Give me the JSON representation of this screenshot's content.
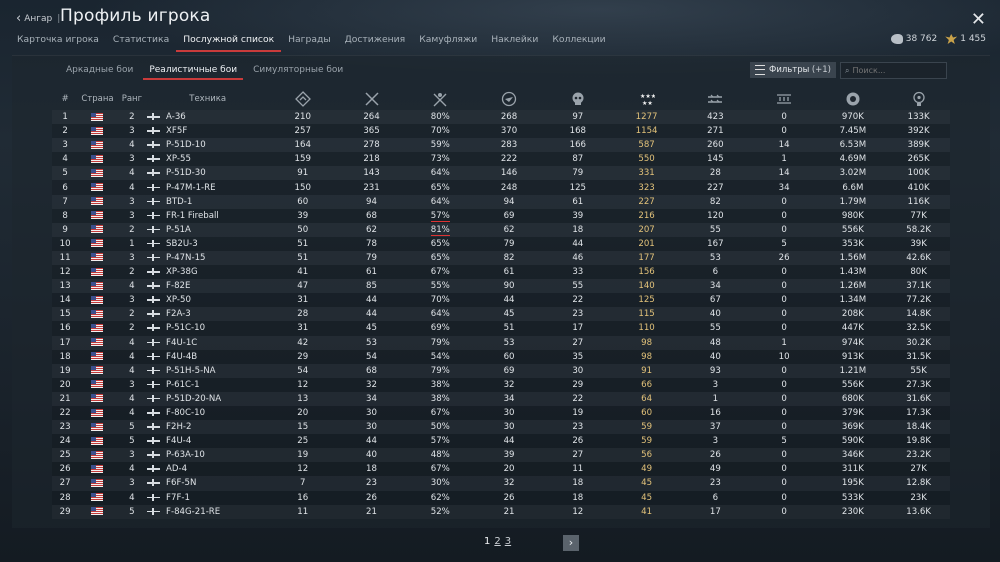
{
  "header": {
    "back_label": "Ангар",
    "separator": "|",
    "title": "Профиль игрока",
    "tabs": [
      "Карточка игрока",
      "Статистика",
      "Послужной список",
      "Награды",
      "Достижения",
      "Камуфляжи",
      "Наклейки",
      "Коллекции"
    ],
    "active_tab": 2,
    "silver_lions": "38 762",
    "golden_eagles": "1 455"
  },
  "modes": {
    "tabs": [
      "Аркадные бои",
      "Реалистичные бои",
      "Симуляторные бои"
    ],
    "active": 1,
    "filters_label": "Фильтры",
    "filters_count": "(+1)",
    "search_placeholder": "Поиск..."
  },
  "table": {
    "headers": {
      "num": "#",
      "country": "Страна",
      "rank": "Ранг",
      "vehicle": "Техника"
    },
    "stat_icons": [
      "battles-icon",
      "victories-icon",
      "win-rate-icon",
      "missions-icon",
      "deaths-icon",
      "activity-icon",
      "air-kills-icon",
      "ground-kills-icon",
      "silver-icon",
      "research-icon"
    ],
    "rows": [
      {
        "n": "1",
        "rank": "2",
        "veh": "A-36",
        "s": [
          "210",
          "264",
          "80%",
          "268",
          "97",
          "1277",
          "423",
          "0",
          "970K",
          "133K"
        ]
      },
      {
        "n": "2",
        "rank": "3",
        "veh": "XF5F",
        "s": [
          "257",
          "365",
          "70%",
          "370",
          "168",
          "1154",
          "271",
          "0",
          "7.45M",
          "392K"
        ]
      },
      {
        "n": "3",
        "rank": "4",
        "veh": "P-51D-10",
        "s": [
          "164",
          "278",
          "59%",
          "283",
          "166",
          "587",
          "260",
          "14",
          "6.53M",
          "389K"
        ]
      },
      {
        "n": "4",
        "rank": "3",
        "veh": "XP-55",
        "s": [
          "159",
          "218",
          "73%",
          "222",
          "87",
          "550",
          "145",
          "1",
          "4.69M",
          "265K"
        ]
      },
      {
        "n": "5",
        "rank": "4",
        "veh": "P-51D-30",
        "s": [
          "91",
          "143",
          "64%",
          "146",
          "79",
          "331",
          "28",
          "14",
          "3.02M",
          "100K"
        ]
      },
      {
        "n": "6",
        "rank": "4",
        "veh": "P-47M-1-RE",
        "s": [
          "150",
          "231",
          "65%",
          "248",
          "125",
          "323",
          "227",
          "34",
          "6.6M",
          "410K"
        ]
      },
      {
        "n": "7",
        "rank": "3",
        "veh": "BTD-1",
        "s": [
          "60",
          "94",
          "64%",
          "94",
          "61",
          "227",
          "82",
          "0",
          "1.79M",
          "116K"
        ]
      },
      {
        "n": "8",
        "rank": "3",
        "veh": "FR-1 Fireball",
        "s": [
          "39",
          "68",
          "57%",
          "69",
          "39",
          "216",
          "120",
          "0",
          "980K",
          "77K"
        ]
      },
      {
        "n": "9",
        "rank": "2",
        "veh": "P-51A",
        "s": [
          "50",
          "62",
          "81%",
          "62",
          "18",
          "207",
          "55",
          "0",
          "556K",
          "58.2K"
        ]
      },
      {
        "n": "10",
        "rank": "1",
        "veh": "SB2U-3",
        "s": [
          "51",
          "78",
          "65%",
          "79",
          "44",
          "201",
          "167",
          "5",
          "353K",
          "39K"
        ]
      },
      {
        "n": "11",
        "rank": "3",
        "veh": "P-47N-15",
        "s": [
          "51",
          "79",
          "65%",
          "82",
          "46",
          "177",
          "53",
          "26",
          "1.56M",
          "42.6K"
        ]
      },
      {
        "n": "12",
        "rank": "2",
        "veh": "XP-38G",
        "s": [
          "41",
          "61",
          "67%",
          "61",
          "33",
          "156",
          "6",
          "0",
          "1.43M",
          "80K"
        ]
      },
      {
        "n": "13",
        "rank": "4",
        "veh": "F-82E",
        "s": [
          "47",
          "85",
          "55%",
          "90",
          "55",
          "140",
          "34",
          "0",
          "1.26M",
          "37.1K"
        ]
      },
      {
        "n": "14",
        "rank": "3",
        "veh": "XP-50",
        "s": [
          "31",
          "44",
          "70%",
          "44",
          "22",
          "125",
          "67",
          "0",
          "1.34M",
          "77.2K"
        ]
      },
      {
        "n": "15",
        "rank": "2",
        "veh": "F2A-3",
        "s": [
          "28",
          "44",
          "64%",
          "45",
          "23",
          "115",
          "40",
          "0",
          "208K",
          "14.8K"
        ]
      },
      {
        "n": "16",
        "rank": "2",
        "veh": "P-51C-10",
        "s": [
          "31",
          "45",
          "69%",
          "51",
          "17",
          "110",
          "55",
          "0",
          "447K",
          "32.5K"
        ]
      },
      {
        "n": "17",
        "rank": "4",
        "veh": "F4U-1C",
        "s": [
          "42",
          "53",
          "79%",
          "53",
          "27",
          "98",
          "48",
          "1",
          "974K",
          "30.2K"
        ]
      },
      {
        "n": "18",
        "rank": "4",
        "veh": "F4U-4B",
        "s": [
          "29",
          "54",
          "54%",
          "60",
          "35",
          "98",
          "40",
          "10",
          "913K",
          "31.5K"
        ]
      },
      {
        "n": "19",
        "rank": "4",
        "veh": "P-51H-5-NA",
        "s": [
          "54",
          "68",
          "79%",
          "69",
          "30",
          "91",
          "93",
          "0",
          "1.21M",
          "55K"
        ]
      },
      {
        "n": "20",
        "rank": "3",
        "veh": "P-61C-1",
        "s": [
          "12",
          "32",
          "38%",
          "32",
          "29",
          "66",
          "3",
          "0",
          "556K",
          "27.3K"
        ]
      },
      {
        "n": "21",
        "rank": "4",
        "veh": "P-51D-20-NA",
        "s": [
          "13",
          "34",
          "38%",
          "34",
          "22",
          "64",
          "1",
          "0",
          "680K",
          "31.6K"
        ]
      },
      {
        "n": "22",
        "rank": "4",
        "veh": "F-80C-10",
        "s": [
          "20",
          "30",
          "67%",
          "30",
          "19",
          "60",
          "16",
          "0",
          "379K",
          "17.3K"
        ]
      },
      {
        "n": "23",
        "rank": "5",
        "veh": "F2H-2",
        "s": [
          "15",
          "30",
          "50%",
          "30",
          "23",
          "59",
          "37",
          "0",
          "369K",
          "18.4K"
        ]
      },
      {
        "n": "24",
        "rank": "5",
        "veh": "F4U-4",
        "s": [
          "25",
          "44",
          "57%",
          "44",
          "26",
          "59",
          "3",
          "5",
          "590K",
          "19.8K"
        ]
      },
      {
        "n": "25",
        "rank": "3",
        "veh": "P-63A-10",
        "s": [
          "19",
          "40",
          "48%",
          "39",
          "27",
          "56",
          "26",
          "0",
          "346K",
          "23.2K"
        ]
      },
      {
        "n": "26",
        "rank": "4",
        "veh": "AD-4",
        "s": [
          "12",
          "18",
          "67%",
          "20",
          "11",
          "49",
          "49",
          "0",
          "311K",
          "27K"
        ]
      },
      {
        "n": "27",
        "rank": "3",
        "veh": "F6F-5N",
        "s": [
          "7",
          "23",
          "30%",
          "32",
          "18",
          "45",
          "23",
          "0",
          "195K",
          "12.8K"
        ]
      },
      {
        "n": "28",
        "rank": "4",
        "veh": "F7F-1",
        "s": [
          "16",
          "26",
          "62%",
          "26",
          "18",
          "45",
          "6",
          "0",
          "533K",
          "23K"
        ]
      },
      {
        "n": "29",
        "rank": "5",
        "veh": "F-84G-21-RE",
        "s": [
          "11",
          "21",
          "52%",
          "21",
          "12",
          "41",
          "17",
          "0",
          "230K",
          "13.6K"
        ]
      }
    ]
  },
  "pager": {
    "pages": [
      "1",
      "2",
      "3"
    ],
    "current": 0,
    "next_label": "›"
  }
}
